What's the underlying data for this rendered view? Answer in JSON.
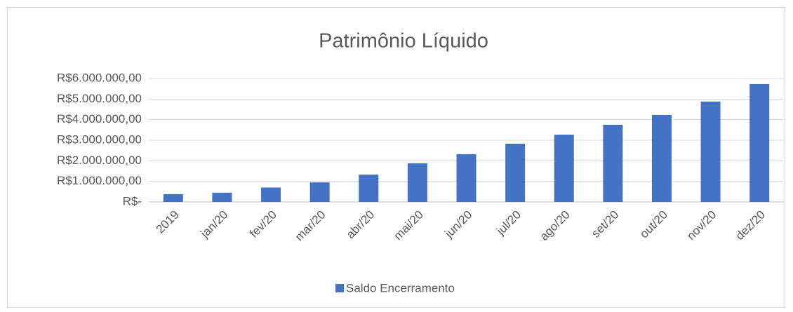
{
  "chart_data": {
    "type": "bar",
    "title": "Patrimônio Líquido",
    "categories": [
      "2019",
      "jan/20",
      "fev/20",
      "mar/20",
      "abr/20",
      "mai/20",
      "jun/20",
      "jul/20",
      "ago/20",
      "set/20",
      "out/20",
      "nov/20",
      "dez/20"
    ],
    "series": [
      {
        "name": "Saldo Encerramento",
        "color": "#4472c4",
        "values": [
          380000,
          450000,
          700000,
          950000,
          1330000,
          1880000,
          2320000,
          2830000,
          3270000,
          3750000,
          4230000,
          4880000,
          5730000
        ]
      }
    ],
    "ylim": [
      0,
      6000000
    ],
    "yticks": [
      {
        "value": 0,
        "label": "R$-"
      },
      {
        "value": 1000000,
        "label": "R$1.000.000,00"
      },
      {
        "value": 2000000,
        "label": "R$2.000.000,00"
      },
      {
        "value": 3000000,
        "label": "R$3.000.000,00"
      },
      {
        "value": 4000000,
        "label": "R$4.000.000,00"
      },
      {
        "value": 5000000,
        "label": "R$5.000.000,00"
      },
      {
        "value": 6000000,
        "label": "R$6.000.000,00"
      }
    ],
    "grid": true,
    "legend": "bottom"
  }
}
